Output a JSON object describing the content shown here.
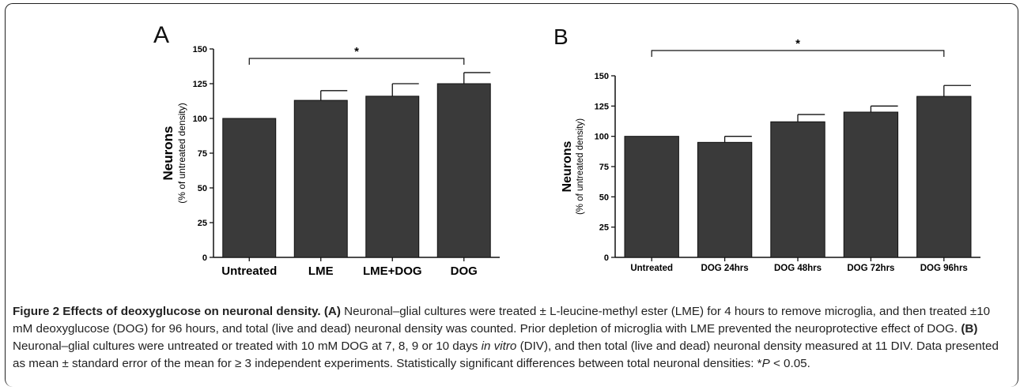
{
  "chart_data": [
    {
      "type": "bar",
      "panel_label": "A",
      "ylabel": "Neurons",
      "ylabel_sub": "(% of untreated density)",
      "categories": [
        "Untreated",
        "LME",
        "LME+DOG",
        "DOG"
      ],
      "values": [
        100,
        113,
        116,
        125
      ],
      "errors": [
        0,
        7,
        9,
        8
      ],
      "ylim": [
        0,
        150
      ],
      "yticks": [
        "0",
        "25",
        "50",
        "75",
        "100",
        "125",
        "150"
      ],
      "significance": {
        "from": 0,
        "to": 3,
        "label": "*"
      },
      "bar_color": "#3a3a3a"
    },
    {
      "type": "bar",
      "panel_label": "B",
      "ylabel": "Neurons",
      "ylabel_sub": "(% of untreated density)",
      "categories": [
        "Untreated",
        "DOG 24hrs",
        "DOG 48hrs",
        "DOG 72hrs",
        "DOG 96hrs"
      ],
      "values": [
        100,
        95,
        112,
        120,
        133
      ],
      "errors": [
        0,
        5,
        6,
        5,
        9
      ],
      "ylim": [
        0,
        150
      ],
      "yticks": [
        "0",
        "25",
        "50",
        "75",
        "100",
        "125",
        "150"
      ],
      "significance": {
        "from": 0,
        "to": 4,
        "label": "*"
      },
      "bar_color": "#3a3a3a"
    }
  ],
  "caption": {
    "title": "Figure 2 Effects of deoxyglucose on neuronal density.",
    "a_label": "(A)",
    "a_text": " Neuronal–glial cultures were treated ± L-leucine-methyl ester (LME) for 4 hours to remove microglia, and then treated ±10 mM deoxyglucose (DOG) for 96 hours, and total (live and dead) neuronal density was counted. Prior depletion of microglia with LME prevented the neuroprotective effect of DOG. ",
    "b_label": "(B)",
    "b_text_1": " Neuronal–glial cultures were untreated or treated with 10 mM DOG at 7, 8, 9 or 10 days ",
    "b_italic": "in vitro",
    "b_text_2": " (DIV), and then total (live and dead) neuronal density measured at 11 DIV. Data presented as mean ± standard error of the mean for ≥ 3 independent experiments. Statistically significant differences between total neuronal densities: *",
    "p_italic": "P",
    "p_text": " < 0.05."
  }
}
